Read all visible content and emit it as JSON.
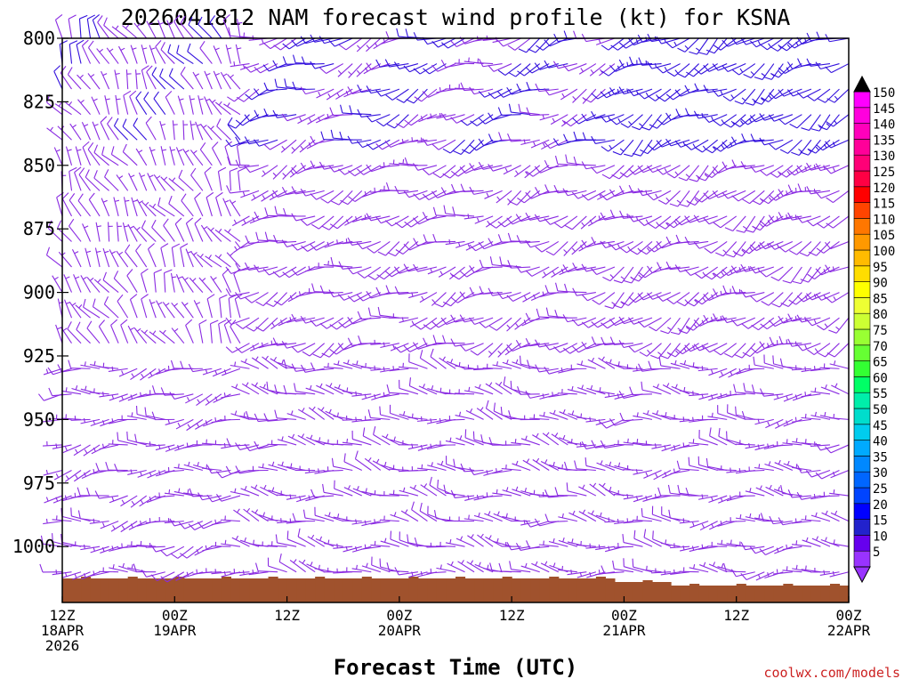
{
  "chart_data": {
    "type": "barbs",
    "title": "2026041812 NAM forecast wind profile (kt) for KSNA",
    "xlabel": "Forecast Time (UTC)",
    "ylabel": "",
    "credit": "coolwx.com/models",
    "y_axis": {
      "unit": "hPa",
      "inverted": true,
      "range": [
        800,
        1022
      ],
      "ticks": [
        800,
        825,
        850,
        875,
        900,
        925,
        950,
        975,
        1000
      ]
    },
    "x_axis": {
      "unit": "forecast hour",
      "range": [
        0,
        84
      ],
      "ticks": [
        {
          "hour": 0,
          "lines": [
            "12Z",
            "18APR",
            "2026"
          ]
        },
        {
          "hour": 12,
          "lines": [
            "00Z",
            "19APR"
          ]
        },
        {
          "hour": 24,
          "lines": [
            "12Z"
          ]
        },
        {
          "hour": 36,
          "lines": [
            "00Z",
            "20APR"
          ]
        },
        {
          "hour": 48,
          "lines": [
            "12Z"
          ]
        },
        {
          "hour": 60,
          "lines": [
            "00Z",
            "21APR"
          ]
        },
        {
          "hour": 72,
          "lines": [
            "12Z"
          ]
        },
        {
          "hour": 84,
          "lines": [
            "00Z",
            "22APR"
          ]
        }
      ]
    },
    "colorbar": {
      "unit": "kt",
      "levels": [
        5,
        10,
        15,
        20,
        25,
        30,
        35,
        40,
        45,
        50,
        55,
        60,
        65,
        70,
        75,
        80,
        85,
        90,
        95,
        100,
        105,
        110,
        115,
        120,
        125,
        130,
        135,
        140,
        145,
        150
      ],
      "colors": [
        "#9933ff",
        "#6600ee",
        "#2222cc",
        "#0000ff",
        "#0044ff",
        "#0066ff",
        "#0088ff",
        "#00aaff",
        "#00ccee",
        "#00ddcc",
        "#00eeaa",
        "#00ff66",
        "#33ff33",
        "#66ff33",
        "#99ff33",
        "#ccff33",
        "#eeff33",
        "#ffff00",
        "#ffdd00",
        "#ffbb00",
        "#ff9900",
        "#ff7700",
        "#ff4400",
        "#ff0000",
        "#ff0044",
        "#ff0077",
        "#ff0099",
        "#ff00bb",
        "#ff00dd",
        "#ff00ff"
      ]
    },
    "terrain_color": "#a0522d",
    "barb_colors": {
      "light": "#8a2be2",
      "moderate": "#3311dd"
    },
    "wind_field": {
      "time_step_hours": 1,
      "levels_hpa": [
        800,
        810,
        820,
        830,
        840,
        850,
        860,
        870,
        880,
        890,
        900,
        910,
        920,
        930,
        940,
        950,
        960,
        970,
        980,
        990,
        1000,
        1010
      ],
      "regimes": [
        {
          "hours": [
            0,
            20
          ],
          "layer": "upper",
          "direction_deg": 330,
          "speed_kt": 10
        },
        {
          "hours": [
            0,
            20
          ],
          "layer": "lower",
          "direction_deg": 260,
          "speed_kt": 8
        },
        {
          "hours": [
            20,
            60
          ],
          "layer": "upper",
          "direction_deg": 250,
          "speed_kt": 12
        },
        {
          "hours": [
            20,
            60
          ],
          "layer": "lower",
          "direction_deg": 280,
          "speed_kt": 8
        },
        {
          "hours": [
            60,
            84
          ],
          "layer": "upper",
          "direction_deg": 240,
          "speed_kt": 15
        },
        {
          "hours": [
            60,
            84
          ],
          "layer": "lower",
          "direction_deg": 270,
          "speed_kt": 8
        }
      ]
    }
  }
}
